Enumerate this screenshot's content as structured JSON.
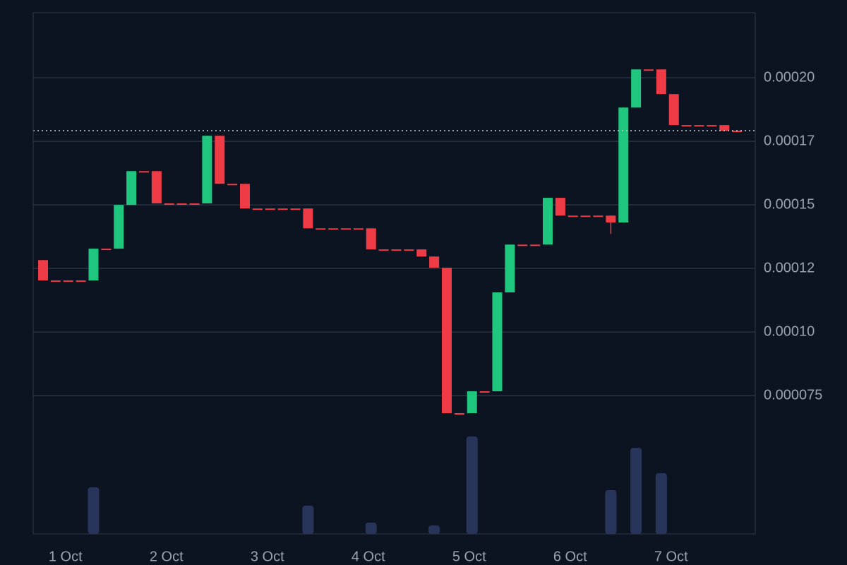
{
  "chart_data": {
    "type": "candlestick",
    "categories": [
      null,
      null,
      "1 Oct",
      null,
      null,
      null,
      null,
      null,
      null,
      null,
      "2 Oct",
      null,
      null,
      null,
      null,
      null,
      null,
      null,
      "3 Oct",
      null,
      null,
      null,
      null,
      null,
      null,
      null,
      "4 Oct",
      null,
      null,
      null,
      null,
      null,
      null,
      null,
      "5 Oct",
      null,
      null,
      null,
      null,
      null,
      null,
      null,
      "6 Oct",
      null,
      null,
      null,
      null,
      null,
      null,
      null,
      "7 Oct",
      null,
      null,
      null,
      null,
      null
    ],
    "open": [
      0.0001283,
      0.0001203,
      0.0001203,
      0.0001203,
      0.0001203,
      0.0001328,
      0.0001328,
      0.00015,
      0.0001633,
      0.0001633,
      0.0001506,
      0.0001506,
      0.0001506,
      0.0001506,
      0.0001772,
      0.0001583,
      0.0001583,
      0.0001486,
      0.0001486,
      0.0001486,
      0.0001486,
      0.0001486,
      0.0001408,
      0.0001408,
      0.0001408,
      0.0001408,
      0.0001408,
      0.0001325,
      0.0001325,
      0.0001325,
      0.0001325,
      0.0001297,
      0.0001253,
      6.81e-05,
      6.81e-05,
      7.67e-05,
      7.67e-05,
      0.0001156,
      0.0001344,
      0.0001344,
      0.0001344,
      0.0001528,
      0.0001458,
      0.0001458,
      0.0001458,
      0.0001458,
      0.0001431,
      0.0001883,
      0.0002033,
      0.0002033,
      0.0001936,
      0.0001814,
      0.0001814,
      0.0001814,
      0.0001814,
      0.0001792
    ],
    "high": [
      0.0001283,
      0.0001203,
      0.0001203,
      0.0001203,
      0.0001328,
      0.0001328,
      0.00015,
      0.0001633,
      0.0001633,
      0.0001633,
      0.0001506,
      0.0001506,
      0.0001506,
      0.0001772,
      0.0001772,
      0.0001583,
      0.0001583,
      0.0001486,
      0.0001486,
      0.0001486,
      0.0001486,
      0.0001486,
      0.0001408,
      0.0001408,
      0.0001408,
      0.0001408,
      0.0001408,
      0.0001325,
      0.0001325,
      0.0001325,
      0.0001325,
      0.0001297,
      0.0001253,
      6.81e-05,
      7.67e-05,
      7.67e-05,
      0.0001156,
      0.0001344,
      0.0001344,
      0.0001344,
      0.0001528,
      0.0001528,
      0.0001458,
      0.0001458,
      0.0001458,
      0.0001458,
      0.0001883,
      0.0002033,
      0.0002033,
      0.0002033,
      0.0001936,
      0.0001814,
      0.0001814,
      0.0001814,
      0.0001814,
      0.0001792
    ],
    "low": [
      0.0001203,
      0.0001203,
      0.0001203,
      0.0001203,
      0.0001203,
      0.0001328,
      0.0001328,
      0.00015,
      0.0001633,
      0.0001506,
      0.0001506,
      0.0001506,
      0.0001506,
      0.0001506,
      0.0001583,
      0.0001583,
      0.0001486,
      0.0001486,
      0.0001486,
      0.0001486,
      0.0001486,
      0.0001408,
      0.0001408,
      0.0001408,
      0.0001408,
      0.0001408,
      0.0001325,
      0.0001325,
      0.0001325,
      0.0001325,
      0.0001297,
      0.0001253,
      6.81e-05,
      6.81e-05,
      6.81e-05,
      7.67e-05,
      7.67e-05,
      0.0001156,
      0.0001344,
      0.0001344,
      0.0001344,
      0.0001458,
      0.0001458,
      0.0001458,
      0.0001458,
      0.0001386,
      0.0001431,
      0.0001883,
      0.0002033,
      0.0001936,
      0.0001814,
      0.0001814,
      0.0001814,
      0.0001814,
      0.0001792,
      0.0001792
    ],
    "close": [
      0.0001203,
      0.0001203,
      0.0001203,
      0.0001203,
      0.0001328,
      0.0001328,
      0.00015,
      0.0001633,
      0.0001633,
      0.0001506,
      0.0001506,
      0.0001506,
      0.0001506,
      0.0001772,
      0.0001583,
      0.0001583,
      0.0001486,
      0.0001486,
      0.0001486,
      0.0001486,
      0.0001486,
      0.0001408,
      0.0001408,
      0.0001408,
      0.0001408,
      0.0001408,
      0.0001325,
      0.0001325,
      0.0001325,
      0.0001325,
      0.0001297,
      0.0001253,
      6.81e-05,
      6.81e-05,
      7.67e-05,
      7.67e-05,
      0.0001156,
      0.0001344,
      0.0001344,
      0.0001344,
      0.0001528,
      0.0001458,
      0.0001458,
      0.0001458,
      0.0001458,
      0.0001431,
      0.0001883,
      0.0002033,
      0.0002033,
      0.0001936,
      0.0001814,
      0.0001814,
      0.0001814,
      0.0001814,
      0.0001792,
      0.0001792
    ],
    "volume": [
      0,
      0,
      0,
      0,
      66,
      0,
      0,
      0,
      0,
      0,
      0,
      0,
      0,
      0,
      0,
      0,
      0,
      0,
      0,
      0,
      0,
      40,
      0,
      0,
      0,
      0,
      16,
      0,
      0,
      0,
      0,
      12,
      0,
      0,
      138,
      0,
      0,
      0,
      0,
      0,
      0,
      0,
      0,
      0,
      0,
      62,
      0,
      122,
      0,
      86,
      0,
      0,
      0,
      0,
      0,
      0
    ],
    "up_color": "#1fc77e",
    "down_color": "#ef3b45",
    "volume_color": "#28345a",
    "ylim": [
      2.06e-05,
      0.0002256
    ],
    "yticks": [
      {
        "value": 7.5e-05,
        "label": "0.000075"
      },
      {
        "value": 0.0001,
        "label": "0.00010"
      },
      {
        "value": 0.000125,
        "label": "0.00012"
      },
      0.00015,
      {
        "value": 0.000175,
        "label": "0.00017"
      },
      {
        "value": 0.0002,
        "label": "0.00020"
      }
    ],
    "grid": true,
    "last_price_line": true
  }
}
